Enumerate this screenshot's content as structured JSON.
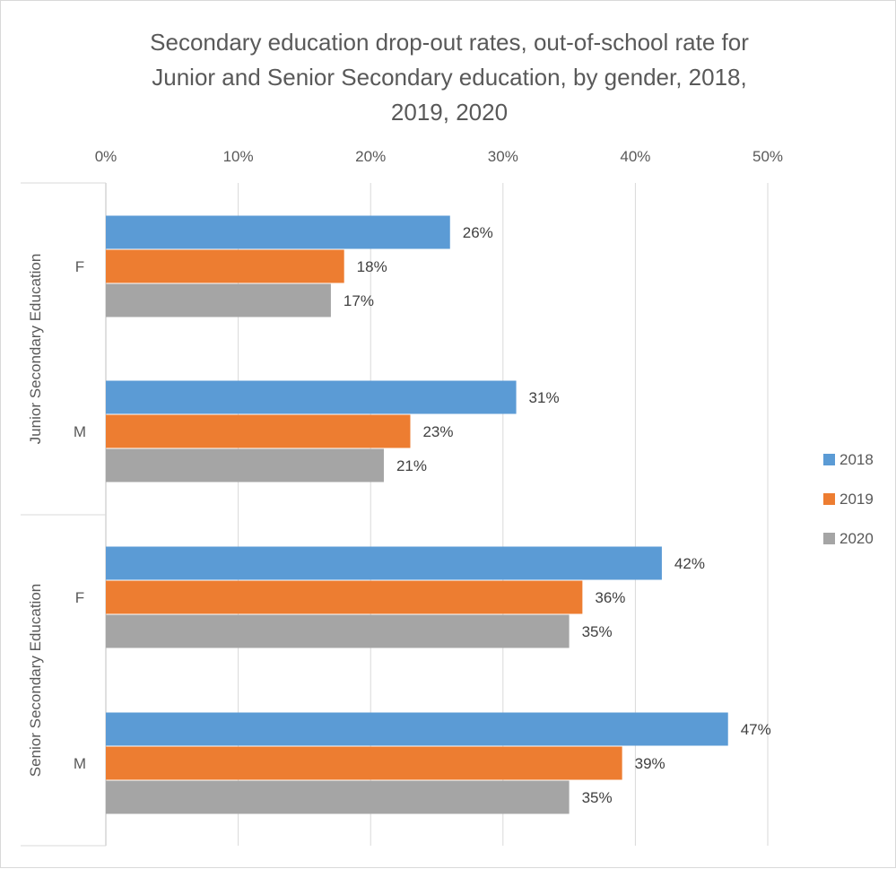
{
  "chart_data": {
    "type": "bar",
    "orientation": "horizontal",
    "title": "Secondary education drop-out rates, out-of-school rate for Junior and Senior Secondary education, by gender, 2018, 2019, 2020",
    "title_lines": [
      "Secondary education drop-out rates, out-of-school rate for",
      "Junior and Senior Secondary education, by gender, 2018,",
      "2019, 2020"
    ],
    "x_ticks": [
      "0%",
      "10%",
      "20%",
      "30%",
      "40%",
      "50%"
    ],
    "xlim": [
      0,
      50
    ],
    "xaxis_position": "top",
    "grid": true,
    "legend_position": "right",
    "groups": [
      {
        "label": "Junior Secondary Education",
        "categories": [
          "F",
          "M"
        ]
      },
      {
        "label": "Senior Secondary Education",
        "categories": [
          "F",
          "M"
        ]
      }
    ],
    "series": [
      {
        "name": "2018",
        "color": "#5B9BD5",
        "values": [
          26,
          31,
          42,
          47
        ],
        "labels": [
          "26%",
          "31%",
          "42%",
          "47%"
        ]
      },
      {
        "name": "2019",
        "color": "#ED7D31",
        "values": [
          18,
          23,
          36,
          39
        ],
        "labels": [
          "18%",
          "23%",
          "36%",
          "39%"
        ]
      },
      {
        "name": "2020",
        "color": "#A5A5A5",
        "values": [
          17,
          21,
          35,
          35
        ],
        "labels": [
          "17%",
          "21%",
          "35%",
          "35%"
        ]
      }
    ]
  }
}
